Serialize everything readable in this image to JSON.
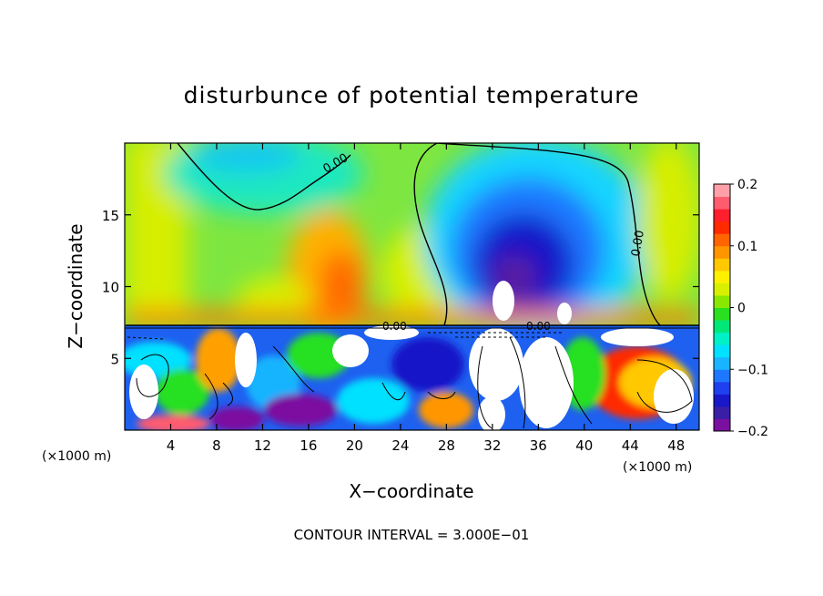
{
  "chart_data": {
    "type": "heatmap",
    "title": "disturbunce of potential temperature",
    "xlabel": "X−coordinate",
    "ylabel": "Z−coordinate",
    "x_unit_label": "(×1000 m)",
    "xlim": [
      0,
      50
    ],
    "ylim": [
      0,
      20
    ],
    "x_ticks": [
      4,
      8,
      12,
      16,
      20,
      24,
      28,
      32,
      36,
      40,
      44,
      48
    ],
    "y_ticks": [
      5,
      10,
      15
    ],
    "footer": "CONTOUR INTERVAL = 3.000E−01",
    "contour_labels": [
      "0.00",
      "0.00",
      "0.00",
      "0.00"
    ],
    "colorbar": {
      "range": [
        -0.2,
        0.2
      ],
      "tick_values": [
        0.2,
        0.1,
        0,
        -0.1,
        -0.2
      ],
      "tick_labels": [
        "0.2",
        "0.1",
        "0",
        "−0.1",
        "−0.2"
      ],
      "colors": [
        "#7b0fa0",
        "#3a1ea6",
        "#1818c8",
        "#1e40ee",
        "#1e78ff",
        "#18b4ff",
        "#00e0ff",
        "#00f0c8",
        "#00e878",
        "#28e020",
        "#8ae800",
        "#d8f000",
        "#fff000",
        "#ffc800",
        "#ff9600",
        "#ff6400",
        "#ff2a00",
        "#ff1e2d",
        "#ff5c6e",
        "#ffa0a8"
      ]
    },
    "grid": false,
    "legend": "colorbar-right"
  }
}
